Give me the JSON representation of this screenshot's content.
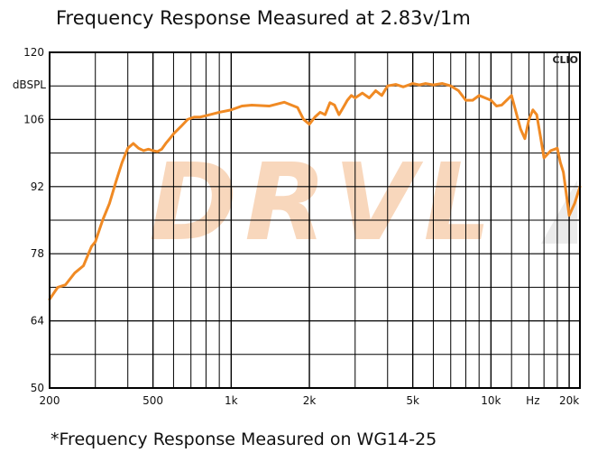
{
  "title": "Frequency Response Measured at 2.83v/1m",
  "footnote": "*Frequency Response Measured  on WG14-25",
  "badge": "CLIO",
  "watermark": "DRVL",
  "colors": {
    "curve": "#F08A24",
    "grid": "#000000",
    "watermark": "#F6C9A6",
    "watermark_gray": "#E6E6E6"
  },
  "chart_data": {
    "type": "line",
    "title": "Frequency Response Measured at 2.83v/1m",
    "xlabel": "Hz",
    "ylabel": "dBSPL",
    "x_scale": "log",
    "xlim": [
      200,
      22000
    ],
    "ylim": [
      50,
      120
    ],
    "grid": true,
    "y_ticks": [
      {
        "value": 120,
        "label": "120"
      },
      {
        "value": 106,
        "label": "106"
      },
      {
        "value": 92,
        "label": "92"
      },
      {
        "value": 78,
        "label": "78"
      },
      {
        "value": 64,
        "label": "64"
      },
      {
        "value": 50,
        "label": "50"
      }
    ],
    "y_unit_label": "dBSPL",
    "x_ticks": [
      {
        "value": 200,
        "label": "200"
      },
      {
        "value": 500,
        "label": "500"
      },
      {
        "value": 1000,
        "label": "1k"
      },
      {
        "value": 2000,
        "label": "2k"
      },
      {
        "value": 5000,
        "label": "5k"
      },
      {
        "value": 10000,
        "label": "10k"
      },
      {
        "value": 20000,
        "label": "20k"
      }
    ],
    "x_unit_label": "Hz",
    "series": [
      {
        "x": [
          200,
          215,
          230,
          250,
          270,
          290,
          300,
          320,
          340,
          360,
          380,
          400,
          420,
          440,
          460,
          480,
          500,
          520,
          540,
          560,
          580,
          600,
          640,
          680,
          720,
          760,
          800,
          900,
          1000,
          1100,
          1200,
          1400,
          1600,
          1800,
          1900,
          2000,
          2100,
          2200,
          2300,
          2400,
          2500,
          2600,
          2700,
          2800,
          2900,
          3000,
          3200,
          3400,
          3600,
          3800,
          4000,
          4300,
          4600,
          5000,
          5300,
          5600,
          6000,
          6500,
          7000,
          7500,
          8000,
          8500,
          9000,
          9500,
          10000,
          10500,
          11000,
          12000,
          13000,
          13500,
          14000,
          14500,
          15000,
          15500,
          16000,
          17000,
          18000,
          18500,
          19000,
          20000,
          21000,
          22000
        ],
        "y": [
          68.5,
          71,
          71.5,
          74,
          75.5,
          79.5,
          80.5,
          85,
          88.5,
          93,
          97,
          100,
          101,
          100,
          99.5,
          99.8,
          99.5,
          99.3,
          99.8,
          101,
          102,
          103,
          104.5,
          106,
          106.5,
          106.5,
          106.8,
          107.5,
          108,
          108.8,
          109,
          108.8,
          109.6,
          108.5,
          106,
          105,
          106.5,
          107.5,
          107,
          109.5,
          109,
          107,
          108.5,
          110,
          111,
          110.5,
          111.5,
          110.5,
          112,
          111,
          113,
          113.3,
          112.8,
          113.5,
          113.2,
          113.5,
          113.2,
          113.5,
          113,
          112,
          110,
          110,
          111,
          110.5,
          110,
          108.8,
          109,
          111,
          104,
          102,
          106,
          108,
          107,
          102.5,
          98,
          99.5,
          100,
          97,
          95,
          86,
          88.5,
          92
        ]
      }
    ]
  }
}
